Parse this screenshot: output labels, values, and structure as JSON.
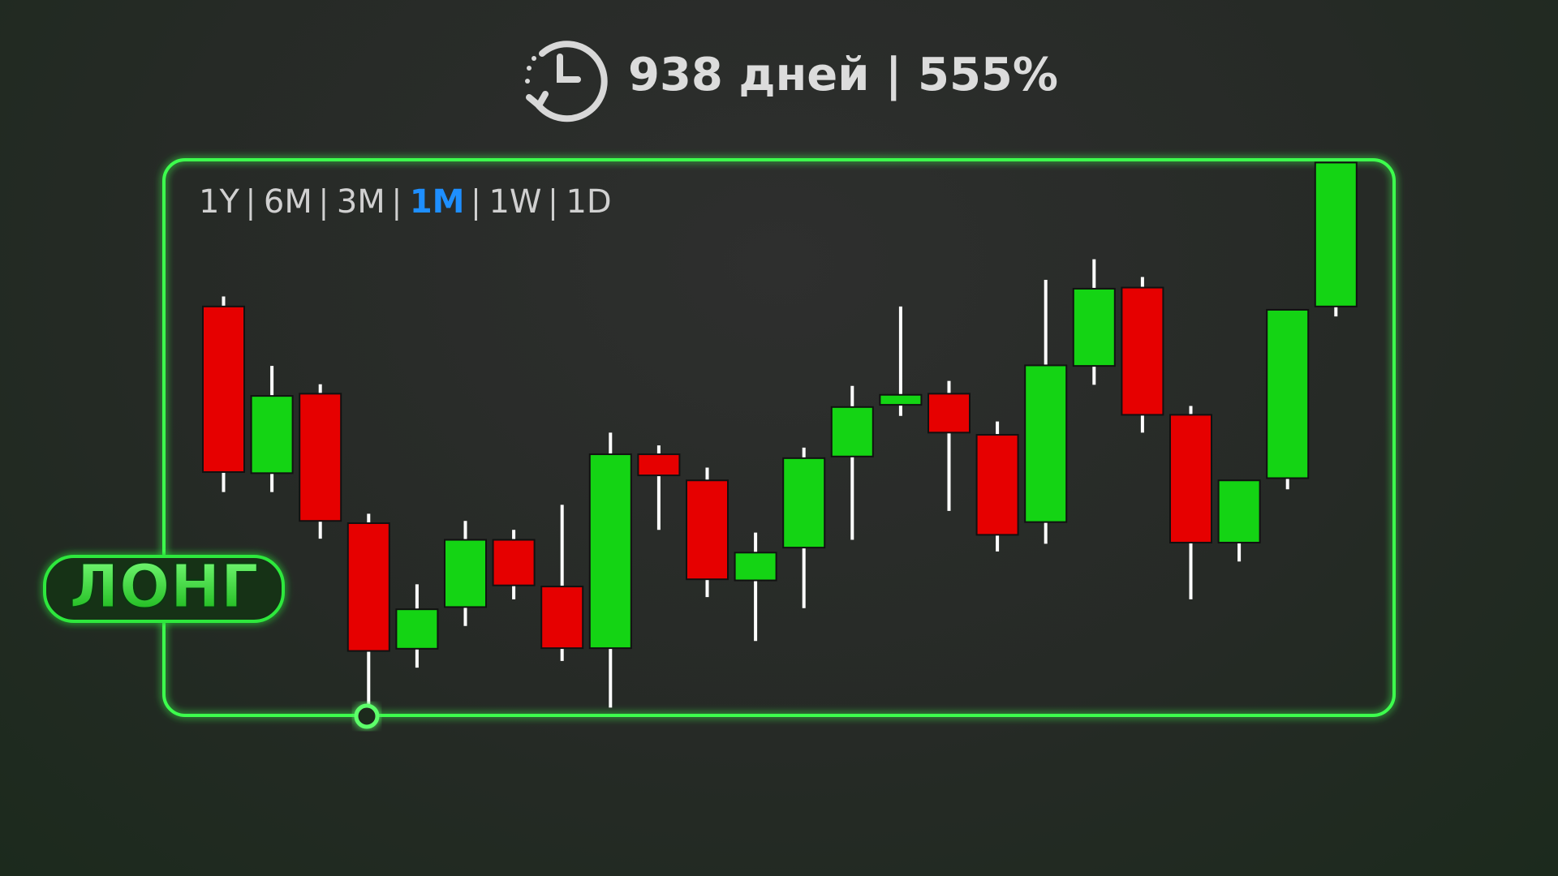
{
  "chart_data": {
    "type": "candlestick",
    "title": "938 дней | 555%",
    "timeframes": [
      "1Y",
      "6M",
      "3M",
      "1M",
      "1W",
      "1D"
    ],
    "active_timeframe": "1M",
    "annotation": "ЛОНГ",
    "up_color": "#14d414",
    "down_color": "#e60000",
    "active_color": "#1e8fff",
    "ylim": [
      0,
      100
    ],
    "open": [
      73.6,
      43.6,
      57.9,
      34.6,
      12.0,
      19.5,
      31.6,
      23.2,
      12.1,
      47.0,
      42.3,
      24.3,
      30.2,
      46.6,
      55.9,
      57.9,
      50.5,
      34.8,
      62.9,
      77.0,
      54.1,
      31.1,
      42.7,
      73.6
    ],
    "high": [
      75.4,
      62.9,
      59.6,
      36.3,
      23.6,
      35.0,
      33.4,
      37.9,
      50.9,
      48.6,
      44.6,
      32.9,
      48.2,
      59.3,
      73.6,
      60.2,
      52.9,
      78.4,
      82.1,
      78.9,
      55.7,
      42.3,
      73.0,
      99.5
    ],
    "low": [
      40.2,
      40.2,
      31.8,
      1.4,
      8.6,
      16.1,
      20.9,
      9.8,
      1.4,
      33.4,
      21.3,
      13.4,
      19.3,
      31.6,
      53.9,
      36.8,
      29.5,
      30.9,
      59.5,
      50.9,
      20.9,
      27.7,
      40.7,
      71.8
    ],
    "close": [
      43.8,
      57.5,
      35.0,
      11.6,
      19.1,
      31.6,
      23.4,
      12.1,
      47.0,
      43.2,
      24.5,
      29.3,
      46.3,
      55.5,
      57.7,
      50.9,
      32.5,
      63.0,
      76.8,
      54.1,
      31.1,
      42.3,
      73.0,
      99.5
    ]
  }
}
